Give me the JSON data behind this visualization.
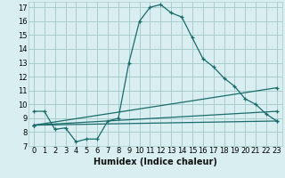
{
  "title": "",
  "xlabel": "Humidex (Indice chaleur)",
  "bg_color": "#d8eef0",
  "grid_color": "#aacccc",
  "line_color": "#1a6b6b",
  "xlim": [
    -0.5,
    23.5
  ],
  "ylim": [
    7,
    17.4
  ],
  "xticks": [
    0,
    1,
    2,
    3,
    4,
    5,
    6,
    7,
    8,
    9,
    10,
    11,
    12,
    13,
    14,
    15,
    16,
    17,
    18,
    19,
    20,
    21,
    22,
    23
  ],
  "yticks": [
    7,
    8,
    9,
    10,
    11,
    12,
    13,
    14,
    15,
    16,
    17
  ],
  "series": [
    {
      "x": [
        0,
        1,
        2,
        3,
        4,
        5,
        6,
        7,
        8,
        9,
        10,
        11,
        12,
        13,
        14,
        15,
        16,
        17,
        18,
        19,
        20,
        21,
        22,
        23
      ],
      "y": [
        9.5,
        9.5,
        8.2,
        8.3,
        7.3,
        7.5,
        7.5,
        8.8,
        9.0,
        13.0,
        16.0,
        17.0,
        17.2,
        16.6,
        16.3,
        14.8,
        13.3,
        12.7,
        11.9,
        11.3,
        10.4,
        10.0,
        9.3,
        8.8
      ],
      "marker": true
    },
    {
      "x": [
        0,
        23
      ],
      "y": [
        8.5,
        8.8
      ],
      "marker": true
    },
    {
      "x": [
        0,
        23
      ],
      "y": [
        8.5,
        9.5
      ],
      "marker": true
    },
    {
      "x": [
        0,
        23
      ],
      "y": [
        8.5,
        11.2
      ],
      "marker": true
    }
  ],
  "tick_fontsize": 6,
  "xlabel_fontsize": 7,
  "xlabel_fontweight": "bold"
}
